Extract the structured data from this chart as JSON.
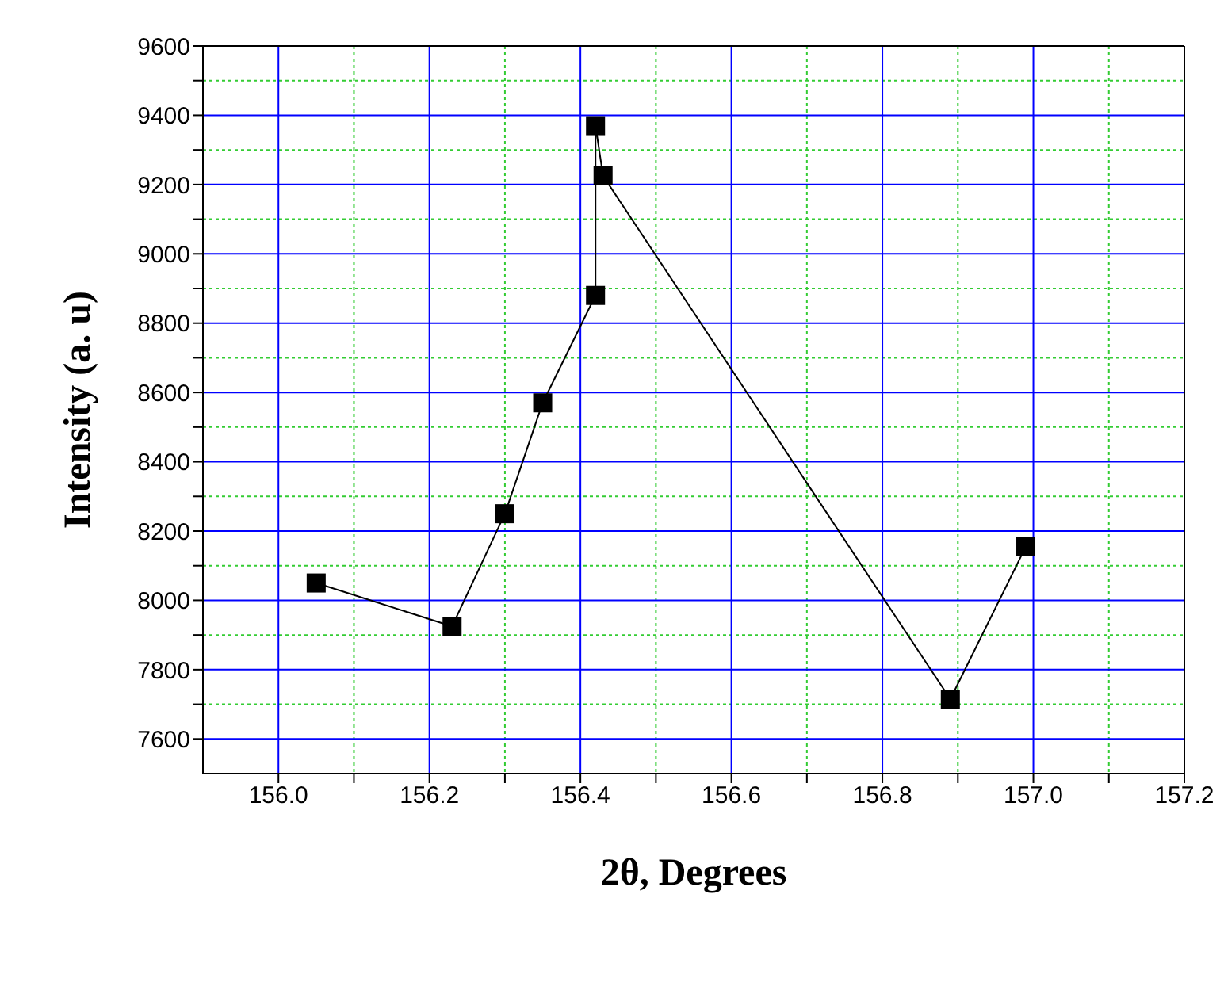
{
  "chart_data": {
    "type": "line",
    "xlabel": "2θ, Degrees",
    "ylabel": "Intensity (a. u)",
    "x": [
      156.05,
      156.23,
      156.3,
      156.35,
      156.42,
      156.42,
      156.43,
      156.89,
      156.99
    ],
    "series": [
      {
        "color": "#000000",
        "values": [
          8050,
          7925,
          8250,
          8570,
          8880,
          9370,
          9225,
          7715,
          8155
        ]
      }
    ],
    "xlim": [
      155.9,
      157.2
    ],
    "xticks": [
      {
        "value": 156.0,
        "label": "156.0"
      },
      {
        "value": 156.1,
        "label": null
      },
      156.2,
      {
        "value": 156.3,
        "label": null
      },
      156.4,
      {
        "value": 156.5,
        "label": null
      },
      156.6,
      {
        "value": 156.7,
        "label": null
      },
      156.8,
      {
        "value": 156.9,
        "label": null
      },
      {
        "value": 157.0,
        "label": "157.0"
      },
      {
        "value": 157.1,
        "label": null
      },
      157.2
    ],
    "ylim": [
      7500,
      9600
    ],
    "yticks": [
      7600,
      {
        "value": 7700,
        "label": null
      },
      7800,
      {
        "value": 7900,
        "label": null
      },
      8000,
      {
        "value": 8100,
        "label": null
      },
      8200,
      {
        "value": 8300,
        "label": null
      },
      8400,
      {
        "value": 8500,
        "label": null
      },
      8600,
      {
        "value": 8700,
        "label": null
      },
      8800,
      {
        "value": 8900,
        "label": null
      },
      9000,
      {
        "value": 9100,
        "label": null
      },
      9200,
      {
        "value": 9300,
        "label": null
      },
      9400,
      {
        "value": 9500,
        "label": null
      },
      9600
    ],
    "grid": true,
    "marker": "square",
    "line_style": "solid"
  }
}
